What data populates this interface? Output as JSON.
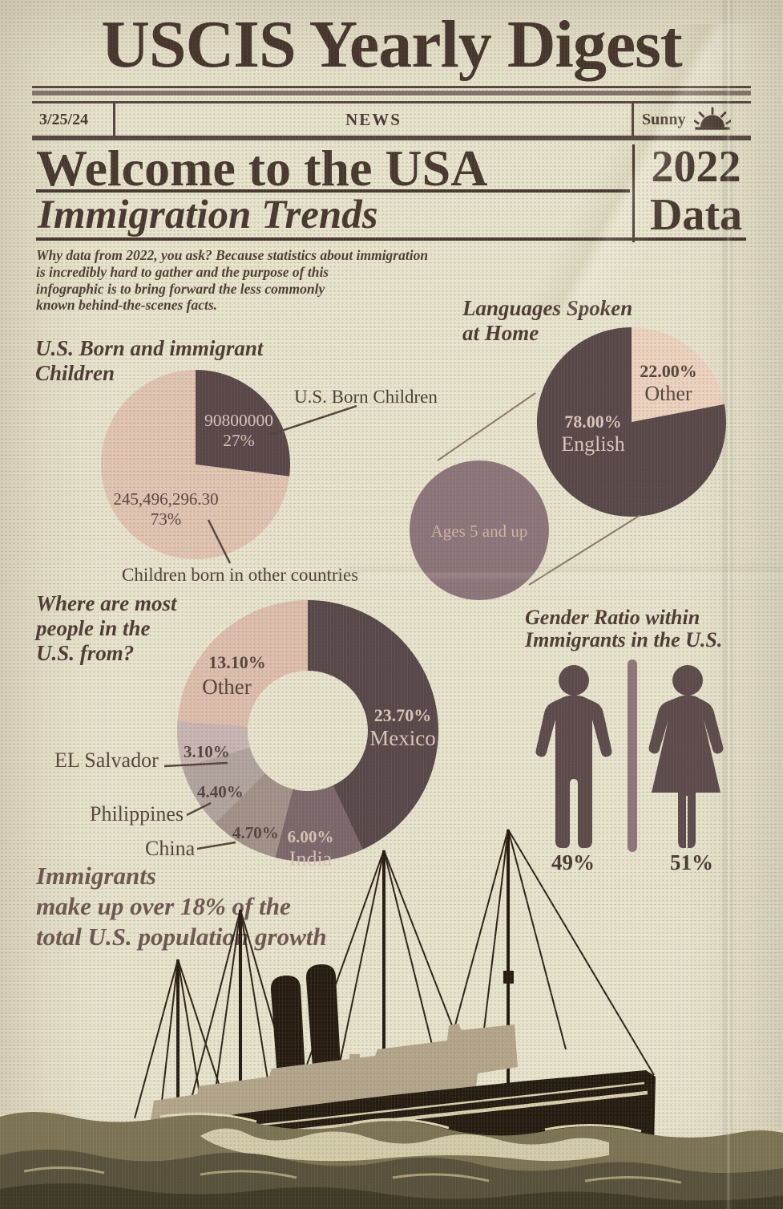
{
  "palette": {
    "paper": "#e9e4ce",
    "ink": "#46372f",
    "dark_slice": "#574749",
    "light_slice": "#e2c5b3",
    "mauve_circle": "#8c757b",
    "cream_label": "#dbc7b9",
    "footnote_color": "#6d5551",
    "figure_color": "#5c4a4b",
    "divider_color": "#8e767a"
  },
  "masthead": {
    "title": "USCIS Yearly Digest"
  },
  "newsbar": {
    "date": "3/25/24",
    "section": "NEWS",
    "weather": "Sunny"
  },
  "headline": {
    "main": "Welcome to the USA",
    "sub": "Immigration Trends",
    "year": "2022",
    "data_word": "Data"
  },
  "intro": {
    "lines": [
      "Why data from 2022, you ask? Because statistics about immigration",
      "is incredibly hard to gather and the purpose of  this",
      "infographic is to bring forward the less commonly",
      "known behind-the-scenes facts."
    ]
  },
  "footnote": {
    "lines": [
      "Immigrants",
      "make up over 18% of  the",
      "total U.S. population growth"
    ]
  },
  "chart_data": [
    {
      "id": "children-pie",
      "type": "pie",
      "title": "U.S. Born and immigrant Children",
      "title_lines": [
        "U.S. Born and immigrant",
        "Children"
      ],
      "legend_position": "callouts",
      "slices": [
        {
          "label": "U.S. Born Children",
          "value_text": "90800000",
          "pct": 27,
          "pct_text": "27%",
          "color": "#584649"
        },
        {
          "label": "Children born in other countries",
          "value_text": "245,496,296.30",
          "pct": 73,
          "pct_text": "73%",
          "color": "#e2c5b3"
        }
      ]
    },
    {
      "id": "languages-pie",
      "type": "pie",
      "title": "Languages Spoken at Home",
      "title_lines": [
        "Languages Spoken",
        "at Home"
      ],
      "population_note": "Ages 5 and up",
      "slices": [
        {
          "label": "Other",
          "pct": 22,
          "pct_text": "22.00%",
          "color": "#edd3c0"
        },
        {
          "label": "English",
          "pct": 78,
          "pct_text": "78.00%",
          "color": "#574749"
        }
      ]
    },
    {
      "id": "origin-donut",
      "type": "donut",
      "title": "Where are most people in the U.S. from?",
      "title_lines": [
        "Where are most",
        "people in the",
        "U.S. from?"
      ],
      "slices": [
        {
          "label": "Mexico",
          "pct": 23.7,
          "pct_text": "23.70%",
          "color": "#57474a"
        },
        {
          "label": "India",
          "pct": 6.0,
          "pct_text": "6.00%",
          "color": "#7b676c"
        },
        {
          "label": "China",
          "pct": 4.7,
          "pct_text": "4.70%",
          "color": "#a2928a"
        },
        {
          "label": "Philippines",
          "pct": 4.4,
          "pct_text": "4.40%",
          "color": "#b2a4a0"
        },
        {
          "label": "EL Salvador",
          "pct": 3.1,
          "pct_text": "3.10%",
          "color": "#c8b6b4"
        },
        {
          "label": "Other",
          "pct": 13.1,
          "pct_text": "13.10%",
          "color": "#debfae"
        }
      ]
    },
    {
      "id": "gender-pictograph",
      "type": "pictograph",
      "title": "Gender Ratio within Immigrants in the U.S.",
      "title_lines": [
        "Gender Ratio within",
        "Immigrants in the U.S."
      ],
      "male_pct": "49%",
      "female_pct": "51%"
    }
  ]
}
